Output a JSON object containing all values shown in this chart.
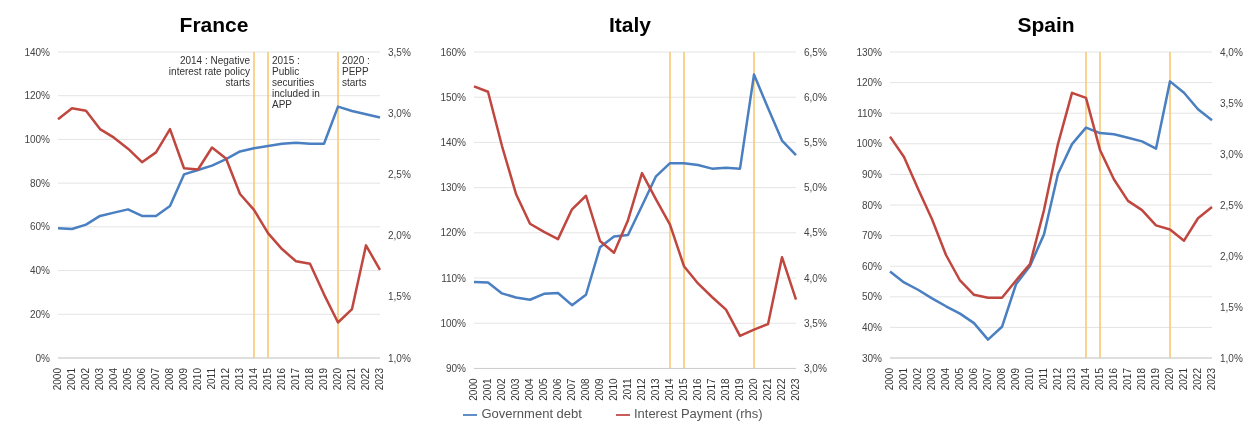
{
  "chart_data": [
    {
      "type": "line",
      "title": "France",
      "categories": [
        "2000",
        "2001",
        "2002",
        "2003",
        "2004",
        "2005",
        "2006",
        "2007",
        "2008",
        "2009",
        "2010",
        "2011",
        "2012",
        "2013",
        "2014",
        "2015",
        "2016",
        "2017",
        "2018",
        "2019",
        "2020",
        "2021",
        "2022",
        "2023"
      ],
      "series": [
        {
          "color": "#4a7fc1",
          "values": [
            59.4,
            59,
            61,
            65,
            66.5,
            68,
            65,
            65,
            69.5,
            84,
            86,
            88,
            91,
            94.5,
            96,
            97,
            98,
            98.5,
            98,
            98,
            115,
            113,
            111.5,
            110
          ]
        },
        {
          "color": "#c0473f",
          "axis": "y2",
          "values": [
            2.95,
            3.04,
            3.02,
            2.87,
            2.8,
            2.71,
            2.6,
            2.68,
            2.87,
            2.55,
            2.54,
            2.72,
            2.63,
            2.34,
            2.21,
            2.02,
            1.89,
            1.79,
            1.77,
            1.52,
            1.29,
            1.4,
            1.92,
            1.72
          ]
        }
      ],
      "ylim": [
        0,
        140
      ],
      "yticks": [
        {
          "value": 0,
          "label": "0%"
        },
        {
          "value": 20,
          "label": "20%"
        },
        {
          "value": 40,
          "label": "40%"
        },
        {
          "value": 60,
          "label": "60%"
        },
        {
          "value": 80,
          "label": "80%"
        },
        {
          "value": 100,
          "label": "100%"
        },
        {
          "value": 120,
          "label": "120%"
        },
        {
          "value": 140,
          "label": "140%"
        }
      ],
      "y2lim": [
        1.0,
        3.5
      ],
      "y2ticks": [
        {
          "value": 1.0,
          "label": "1,0%"
        },
        {
          "value": 1.5,
          "label": "1,5%"
        },
        {
          "value": 2.0,
          "label": "2,0%"
        },
        {
          "value": 2.5,
          "label": "2,5%"
        },
        {
          "value": 3.0,
          "label": "3,0%"
        },
        {
          "value": 3.5,
          "label": "3,5%"
        }
      ],
      "ref_lines": [
        {
          "axis": "x",
          "value": "2014",
          "label": "2014 : Negative interest rate policy starts",
          "color": "#f7c66b"
        },
        {
          "axis": "x",
          "value": "2015",
          "label": "2015 : Public securities included in APP",
          "color": "#f7c66b"
        },
        {
          "axis": "x",
          "value": "2020",
          "label": "2020 : PEPP starts",
          "color": "#f7c66b"
        }
      ],
      "grid": "y",
      "marker": "none",
      "line_style": "solid"
    },
    {
      "type": "line",
      "title": "Italy",
      "categories": [
        "2000",
        "2001",
        "2002",
        "2003",
        "2004",
        "2005",
        "2006",
        "2007",
        "2008",
        "2009",
        "2010",
        "2011",
        "2012",
        "2013",
        "2014",
        "2015",
        "2016",
        "2017",
        "2018",
        "2019",
        "2020",
        "2021",
        "2022",
        "2023"
      ],
      "series": [
        {
          "name": "Government debt",
          "color": "#4a7fc1",
          "values": [
            109.1,
            109,
            106.6,
            105.7,
            105.2,
            106.5,
            106.7,
            104,
            106.3,
            116.8,
            119.2,
            119.5,
            126,
            132.5,
            135.4,
            135.4,
            135,
            134.2,
            134.4,
            134.2,
            155,
            147.6,
            140.4,
            137.2
          ]
        },
        {
          "name": "Interest Payment (rhs)",
          "color": "#c0473f",
          "axis": "y2",
          "values": [
            6.12,
            6.06,
            5.46,
            4.93,
            4.6,
            4.51,
            4.43,
            4.76,
            4.91,
            4.41,
            4.28,
            4.64,
            5.16,
            4.87,
            4.59,
            4.13,
            3.94,
            3.79,
            3.65,
            3.36,
            3.43,
            3.49,
            4.23,
            3.76
          ]
        }
      ],
      "ylim": [
        90,
        160
      ],
      "yticks": [
        {
          "value": 90,
          "label": "90%"
        },
        {
          "value": 100,
          "label": "100%"
        },
        {
          "value": 110,
          "label": "110%"
        },
        {
          "value": 120,
          "label": "120%"
        },
        {
          "value": 130,
          "label": "130%"
        },
        {
          "value": 140,
          "label": "140%"
        },
        {
          "value": 150,
          "label": "150%"
        },
        {
          "value": 160,
          "label": "160%"
        }
      ],
      "y2lim": [
        3.0,
        6.5
      ],
      "y2ticks": [
        {
          "value": 3.0,
          "label": "3,0%"
        },
        {
          "value": 3.5,
          "label": "3,5%"
        },
        {
          "value": 4.0,
          "label": "4,0%"
        },
        {
          "value": 4.5,
          "label": "4,5%"
        },
        {
          "value": 5.0,
          "label": "5,0%"
        },
        {
          "value": 5.5,
          "label": "5,5%"
        },
        {
          "value": 6.0,
          "label": "6,0%"
        },
        {
          "value": 6.5,
          "label": "6,5%"
        }
      ],
      "ref_lines": [
        {
          "axis": "x",
          "value": "2014",
          "color": "#f7c66b"
        },
        {
          "axis": "x",
          "value": "2015",
          "color": "#f7c66b"
        },
        {
          "axis": "x",
          "value": "2020",
          "color": "#f7c66b"
        }
      ],
      "grid": "y",
      "legend": "bottom",
      "marker": "none",
      "line_style": "solid"
    },
    {
      "type": "line",
      "title": "Spain",
      "categories": [
        "2000",
        "2001",
        "2002",
        "2003",
        "2004",
        "2005",
        "2006",
        "2007",
        "2008",
        "2009",
        "2010",
        "2011",
        "2012",
        "2013",
        "2014",
        "2015",
        "2016",
        "2017",
        "2018",
        "2019",
        "2020",
        "2021",
        "2022",
        "2023"
      ],
      "series": [
        {
          "color": "#4a7fc1",
          "values": [
            58.3,
            54.7,
            52.3,
            49.5,
            46.9,
            44.5,
            41.4,
            36,
            40.2,
            54.1,
            60.1,
            70.4,
            90.2,
            99.9,
            105.3,
            103.5,
            103.1,
            102,
            100.8,
            98.4,
            120.4,
            116.7,
            111.3,
            107.7
          ]
        },
        {
          "color": "#c0473f",
          "axis": "y2",
          "values": [
            3.17,
            2.97,
            2.66,
            2.36,
            2.01,
            1.76,
            1.62,
            1.59,
            1.59,
            1.76,
            1.92,
            2.45,
            3.1,
            3.6,
            3.55,
            3.04,
            2.75,
            2.54,
            2.45,
            2.3,
            2.26,
            2.15,
            2.37,
            2.48
          ]
        }
      ],
      "ylim": [
        30,
        130
      ],
      "yticks": [
        {
          "value": 30,
          "label": "30%"
        },
        {
          "value": 40,
          "label": "40%"
        },
        {
          "value": 50,
          "label": "50%"
        },
        {
          "value": 60,
          "label": "60%"
        },
        {
          "value": 70,
          "label": "70%"
        },
        {
          "value": 80,
          "label": "80%"
        },
        {
          "value": 90,
          "label": "90%"
        },
        {
          "value": 100,
          "label": "100%"
        },
        {
          "value": 110,
          "label": "110%"
        },
        {
          "value": 120,
          "label": "120%"
        },
        {
          "value": 130,
          "label": "130%"
        }
      ],
      "y2lim": [
        1.0,
        4.0
      ],
      "y2ticks": [
        {
          "value": 1.0,
          "label": "1,0%"
        },
        {
          "value": 1.5,
          "label": "1,5%"
        },
        {
          "value": 2.0,
          "label": "2,0%"
        },
        {
          "value": 2.5,
          "label": "2,5%"
        },
        {
          "value": 3.0,
          "label": "3,0%"
        },
        {
          "value": 3.5,
          "label": "3,5%"
        },
        {
          "value": 4.0,
          "label": "4,0%"
        }
      ],
      "ref_lines": [
        {
          "axis": "x",
          "value": "2014",
          "color": "#f7c66b"
        },
        {
          "axis": "x",
          "value": "2015",
          "color": "#f7c66b"
        },
        {
          "axis": "x",
          "value": "2020",
          "color": "#f7c66b"
        }
      ],
      "grid": "y",
      "marker": "none",
      "line_style": "solid"
    }
  ]
}
